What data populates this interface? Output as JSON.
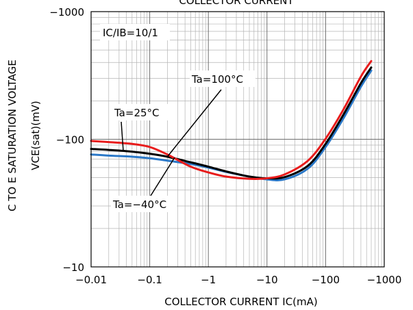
{
  "chart_data": {
    "type": "line",
    "title": "COLLECTOR CURRENT",
    "xlabel": "COLLECTOR CURRENT  IC(mA)",
    "ylabel_line1": "C TO E SATURATION VOLTAGE",
    "ylabel_line2": "VCE(sat)(mV)",
    "x_scale": "log",
    "y_scale": "log",
    "x_ticks": [
      {
        "v": 0.01,
        "label": "−0.01"
      },
      {
        "v": 0.1,
        "label": "−0.1"
      },
      {
        "v": 1,
        "label": "−1"
      },
      {
        "v": 10,
        "label": "−10"
      },
      {
        "v": 100,
        "label": "−100"
      },
      {
        "v": 1000,
        "label": "−1000"
      }
    ],
    "y_ticks": [
      {
        "v": 10,
        "label": "−10"
      },
      {
        "v": 100,
        "label": "−100"
      },
      {
        "v": 1000,
        "label": "−1000"
      }
    ],
    "xlim": [
      0.01,
      1000
    ],
    "ylim": [
      10,
      1000
    ],
    "grid": true,
    "condition": "IC/IB=10/1",
    "series": [
      {
        "name": "Ta=100°C",
        "color": "#e81c1c",
        "x": [
          0.01,
          0.02,
          0.05,
          0.1,
          0.2,
          0.5,
          1,
          2,
          5,
          10,
          20,
          50,
          100,
          200,
          400,
          600
        ],
        "y": [
          97,
          95,
          92,
          87,
          76,
          61,
          55,
          51,
          49,
          49.5,
          53,
          68,
          101,
          170,
          310,
          410
        ]
      },
      {
        "name": "Ta=25°C",
        "color": "#000000",
        "x": [
          0.01,
          0.02,
          0.05,
          0.1,
          0.2,
          0.5,
          1,
          2,
          5,
          10,
          20,
          50,
          100,
          200,
          400,
          600
        ],
        "y": [
          84,
          82.5,
          80,
          77,
          73,
          66,
          61,
          56,
          51,
          49.5,
          50.5,
          62,
          92,
          155,
          275,
          365
        ]
      },
      {
        "name": "Ta=−40°C",
        "color": "#2a78c8",
        "x": [
          0.01,
          0.02,
          0.05,
          0.1,
          0.2,
          0.5,
          1,
          2,
          5,
          10,
          20,
          50,
          100,
          200,
          400,
          600
        ],
        "y": [
          76,
          74.5,
          73,
          71,
          68,
          64,
          60,
          55.5,
          51,
          48.5,
          48.5,
          59,
          87,
          145,
          258,
          345
        ]
      }
    ],
    "annotations": [
      "Ta=100°C",
      "Ta=25°C",
      "Ta=−40°C"
    ]
  }
}
